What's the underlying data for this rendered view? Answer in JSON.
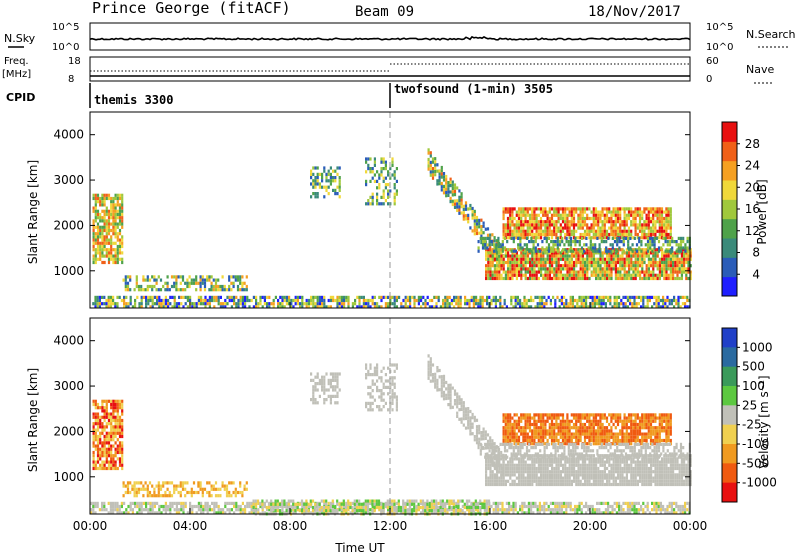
{
  "header": {
    "station": "Prince George (fitACF)",
    "beam": "Beam 09",
    "date": "18/Nov/2017"
  },
  "top_panels": {
    "nsky_label": "N.Sky",
    "nsky_ticks": [
      "10^5",
      "10^0"
    ],
    "nsearch_label": "N.Search",
    "nsearch_ticks": [
      "10^5",
      "10^0"
    ],
    "freq_label": "Freq.",
    "freq_unit": "[MHz]",
    "freq_ticks": [
      "18",
      "8"
    ],
    "nave_label": "Nave",
    "nave_ticks": [
      "60",
      "0"
    ],
    "cpid_label": "CPID",
    "cpid_segments": [
      {
        "name": "themis 3300",
        "start_hour": 0
      },
      {
        "name": "twofsound (1-min) 3505",
        "start_hour": 12
      }
    ]
  },
  "chart_data": [
    {
      "type": "heatmap",
      "id": "power",
      "ylabel": "Slant Range [km]",
      "xlabel": "",
      "xlim": [
        0,
        24
      ],
      "ylim": [
        180,
        4500
      ],
      "y_ticks": [
        1000,
        2000,
        3000,
        4000
      ],
      "colorbar": {
        "label": "Power [dB]",
        "range": [
          0,
          32
        ],
        "ticks": [
          4,
          8,
          12,
          16,
          20,
          24,
          28
        ],
        "colors": [
          "#1f1fff",
          "#2a5cb8",
          "#3a8a7a",
          "#4fa24a",
          "#a0c83c",
          "#f0d83a",
          "#f5a022",
          "#f06018",
          "#e81010"
        ]
      }
    },
    {
      "type": "heatmap",
      "id": "velocity",
      "ylabel": "Slant Range [km]",
      "xlabel": "Time UT",
      "xlim": [
        0,
        24
      ],
      "ylim": [
        180,
        4500
      ],
      "x_ticks": [
        "00:00",
        "04:00",
        "08:00",
        "12:00",
        "16:00",
        "20:00",
        "00:00"
      ],
      "y_ticks": [
        1000,
        2000,
        3000,
        4000
      ],
      "colorbar": {
        "label": "Velocity [m s⁻¹]",
        "ticks": [
          "1000",
          "500",
          "100",
          "25",
          "-25",
          "-100",
          "-500",
          "-1000"
        ],
        "colors": [
          "#2040c8",
          "#2a6aa0",
          "#3a9a5a",
          "#5cc840",
          "#c0c0b8",
          "#f0d050",
          "#f09a20",
          "#f05a10",
          "#e81010"
        ]
      }
    }
  ],
  "colors": {
    "ground_scatter": "#c4c4bc",
    "dashed_line": "#888888"
  }
}
